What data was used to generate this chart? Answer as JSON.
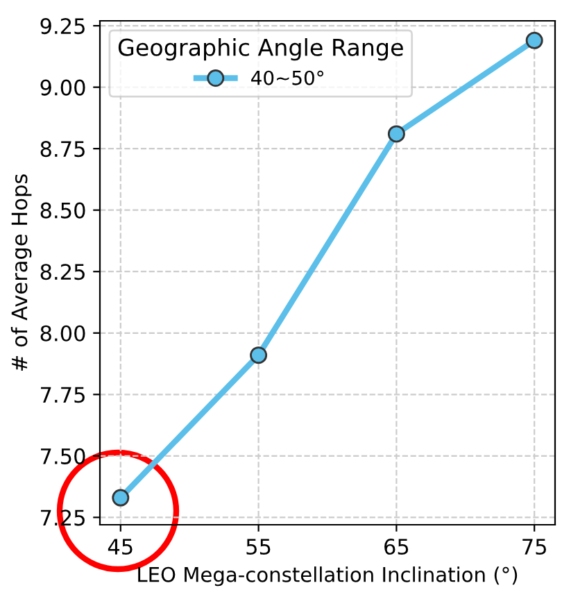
{
  "chart_data": {
    "type": "line",
    "xlabel": "LEO Mega-constellation Inclination (°)",
    "ylabel": "# of Average Hops",
    "legend_title": "Geographic Angle Range",
    "x": [
      45,
      55,
      65,
      75
    ],
    "series": [
      {
        "name": "40~50°",
        "color": "#5bbfea",
        "values": [
          7.33,
          7.91,
          8.81,
          9.19
        ]
      }
    ],
    "xlim": [
      43.5,
      76.5
    ],
    "xticks": [
      45,
      55,
      65,
      75
    ],
    "ylim": [
      7.22,
      9.27
    ],
    "yticks": [
      {
        "value": 7.25,
        "label": "7.25"
      },
      {
        "value": 7.5,
        "label": "7.50"
      },
      {
        "value": 7.75,
        "label": "7.75"
      },
      {
        "value": 8.0,
        "label": "8.00"
      },
      {
        "value": 8.25,
        "label": "8.25"
      },
      {
        "value": 8.5,
        "label": "8.50"
      },
      {
        "value": 8.75,
        "label": "8.75"
      },
      {
        "value": 9.0,
        "label": "9.00"
      },
      {
        "value": 9.25,
        "label": "9.25"
      }
    ],
    "grid": true,
    "legend": "top left",
    "marker": "circle",
    "line_style": "solid"
  }
}
